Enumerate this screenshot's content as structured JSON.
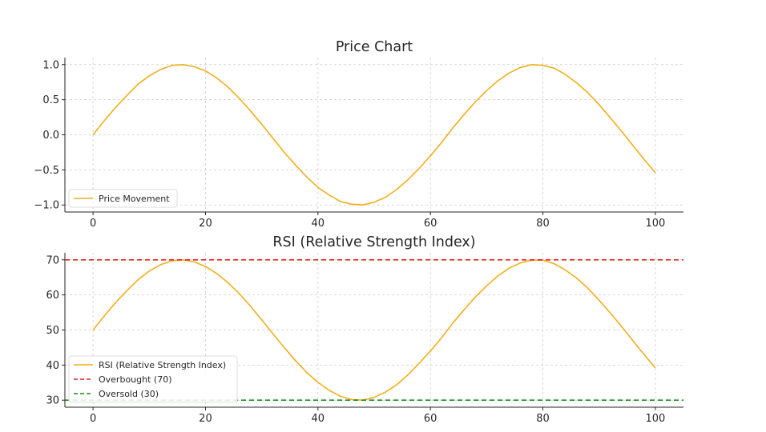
{
  "chart_data": [
    {
      "type": "line",
      "title": "Price Chart",
      "xlabel": "",
      "ylabel": "",
      "xlim": [
        -5,
        105
      ],
      "ylim": [
        -1.1,
        1.1
      ],
      "x_ticks": [
        0,
        20,
        40,
        60,
        80,
        100
      ],
      "x_tick_labels": [
        "0",
        "20",
        "40",
        "60",
        "80",
        "100"
      ],
      "y_ticks": [
        1.0,
        0.5,
        0.0,
        -0.5,
        -1.0
      ],
      "y_tick_labels": [
        "1.0",
        "0.5",
        "0.0",
        "−0.5",
        "−1.0"
      ],
      "grid": true,
      "legend_position": "lower-left",
      "series": [
        {
          "name": "Price Movement",
          "color": "#f2ae1c",
          "style": "solid",
          "x": [
            0,
            2,
            4,
            6,
            8,
            10,
            12,
            14,
            16,
            18,
            20,
            22,
            24,
            26,
            28,
            30,
            32,
            34,
            36,
            38,
            40,
            42,
            44,
            46,
            48,
            50,
            52,
            54,
            56,
            58,
            60,
            62,
            64,
            66,
            68,
            70,
            72,
            74,
            76,
            78,
            80,
            82,
            84,
            86,
            88,
            90,
            92,
            94,
            96,
            98,
            100
          ],
          "y": [
            0.0,
            0.2,
            0.39,
            0.56,
            0.72,
            0.84,
            0.93,
            0.99,
            1.0,
            0.97,
            0.91,
            0.81,
            0.68,
            0.52,
            0.34,
            0.15,
            -0.05,
            -0.25,
            -0.43,
            -0.6,
            -0.75,
            -0.86,
            -0.95,
            -0.99,
            -1.0,
            -0.96,
            -0.89,
            -0.78,
            -0.64,
            -0.48,
            -0.3,
            -0.11,
            0.1,
            0.29,
            0.47,
            0.63,
            0.77,
            0.88,
            0.96,
            1.0,
            0.99,
            0.95,
            0.86,
            0.74,
            0.6,
            0.43,
            0.24,
            0.05,
            -0.15,
            -0.35,
            -0.54
          ]
        }
      ]
    },
    {
      "type": "line",
      "title": "RSI (Relative Strength Index)",
      "xlabel": "",
      "ylabel": "",
      "xlim": [
        -5,
        105
      ],
      "ylim": [
        28,
        72
      ],
      "x_ticks": [
        0,
        20,
        40,
        60,
        80,
        100
      ],
      "x_tick_labels": [
        "0",
        "20",
        "40",
        "60",
        "80",
        "100"
      ],
      "y_ticks": [
        70,
        60,
        50,
        40,
        30
      ],
      "y_tick_labels": [
        "70",
        "60",
        "50",
        "40",
        "30"
      ],
      "grid": true,
      "legend_position": "lower-left",
      "series": [
        {
          "name": "RSI (Relative Strength Index)",
          "color": "#f2ae1c",
          "style": "solid",
          "x": [
            0,
            2,
            4,
            6,
            8,
            10,
            12,
            14,
            16,
            18,
            20,
            22,
            24,
            26,
            28,
            30,
            32,
            34,
            36,
            38,
            40,
            42,
            44,
            46,
            48,
            50,
            52,
            54,
            56,
            58,
            60,
            62,
            64,
            66,
            68,
            70,
            72,
            74,
            76,
            78,
            80,
            82,
            84,
            86,
            88,
            90,
            92,
            94,
            96,
            98,
            100
          ],
          "y": [
            50.0,
            54.0,
            57.8,
            61.2,
            64.3,
            66.8,
            68.6,
            69.7,
            70.0,
            69.4,
            68.1,
            66.1,
            63.5,
            60.4,
            56.8,
            52.9,
            48.9,
            45.0,
            41.3,
            37.9,
            35.1,
            32.8,
            31.1,
            30.2,
            30.0,
            30.8,
            32.3,
            34.4,
            37.2,
            40.5,
            44.0,
            47.8,
            52.0,
            55.8,
            59.4,
            62.6,
            65.4,
            67.6,
            69.1,
            69.9,
            69.9,
            68.9,
            67.1,
            64.8,
            61.9,
            58.5,
            54.8,
            51.0,
            47.0,
            43.0,
            39.2
          ]
        },
        {
          "name": "Overbought (70)",
          "color": "#e32626",
          "style": "dashed",
          "hline": 70
        },
        {
          "name": "Oversold (30)",
          "color": "#1a8a1a",
          "style": "dashed",
          "hline": 30
        }
      ]
    }
  ]
}
